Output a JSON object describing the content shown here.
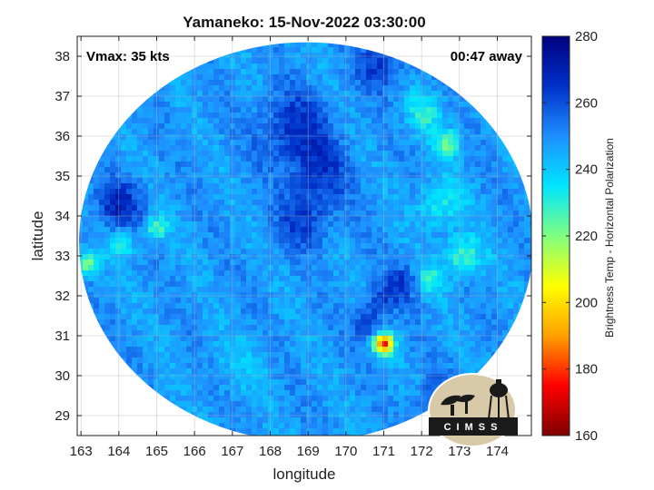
{
  "chart_data": {
    "type": "heatmap",
    "title": "Yamaneko: 15-Nov-2022 03:30:00",
    "xlabel": "longitude",
    "ylabel": "latitude",
    "xlim": [
      162.9,
      174.9
    ],
    "ylim": [
      28.5,
      38.5
    ],
    "xticks": [
      163,
      164,
      165,
      166,
      167,
      168,
      169,
      170,
      171,
      172,
      173,
      174
    ],
    "yticks": [
      29,
      30,
      31,
      32,
      33,
      34,
      35,
      36,
      37,
      38
    ],
    "grid": true,
    "annotations": {
      "vmax": "Vmax: 35 kts",
      "away": "00:47 away"
    },
    "colorbar": {
      "label": "Brightness Temp - Horizontal Polarization",
      "min": 160,
      "max": 280,
      "ticks": [
        160,
        180,
        200,
        220,
        240,
        260,
        280
      ],
      "colors": [
        "#7f0000",
        "#ff0000",
        "#ffa000",
        "#ffff00",
        "#80ff80",
        "#00e5ff",
        "#1f8fff",
        "#0030c8",
        "#00007f"
      ]
    },
    "swath": {
      "center_lon": 168.95,
      "center_lat": 33.35,
      "radius_deg_lon": 6.0,
      "radius_deg_lat": 5.0
    },
    "background_temp": 248,
    "features": [
      {
        "lon": 171.0,
        "lat": 30.8,
        "temp": 178,
        "spread": 0.25
      },
      {
        "lon": 170.6,
        "lat": 31.3,
        "temp": 262,
        "spread": 0.4
      },
      {
        "lon": 170.9,
        "lat": 31.9,
        "temp": 260,
        "spread": 0.4
      },
      {
        "lon": 171.5,
        "lat": 32.3,
        "temp": 262,
        "spread": 0.45
      },
      {
        "lon": 172.2,
        "lat": 32.4,
        "temp": 230,
        "spread": 0.35
      },
      {
        "lon": 173.1,
        "lat": 33.0,
        "temp": 226,
        "spread": 0.5
      },
      {
        "lon": 172.5,
        "lat": 34.3,
        "temp": 232,
        "spread": 0.6
      },
      {
        "lon": 172.7,
        "lat": 35.8,
        "temp": 225,
        "spread": 0.35
      },
      {
        "lon": 172.1,
        "lat": 36.6,
        "temp": 232,
        "spread": 0.5
      },
      {
        "lon": 163.2,
        "lat": 32.8,
        "temp": 218,
        "spread": 0.3
      },
      {
        "lon": 164.1,
        "lat": 33.3,
        "temp": 232,
        "spread": 0.35
      },
      {
        "lon": 165.0,
        "lat": 33.7,
        "temp": 226,
        "spread": 0.3
      },
      {
        "lon": 164.0,
        "lat": 34.3,
        "temp": 268,
        "spread": 0.6
      },
      {
        "lon": 168.6,
        "lat": 36.2,
        "temp": 265,
        "spread": 0.9
      },
      {
        "lon": 169.3,
        "lat": 35.1,
        "temp": 263,
        "spread": 0.8
      },
      {
        "lon": 168.9,
        "lat": 33.9,
        "temp": 262,
        "spread": 0.7
      },
      {
        "lon": 170.9,
        "lat": 37.8,
        "temp": 264,
        "spread": 0.6
      },
      {
        "lon": 172.5,
        "lat": 29.3,
        "temp": 262,
        "spread": 0.6
      },
      {
        "lon": 167.2,
        "lat": 30.3,
        "temp": 242,
        "spread": 0.8
      }
    ]
  }
}
